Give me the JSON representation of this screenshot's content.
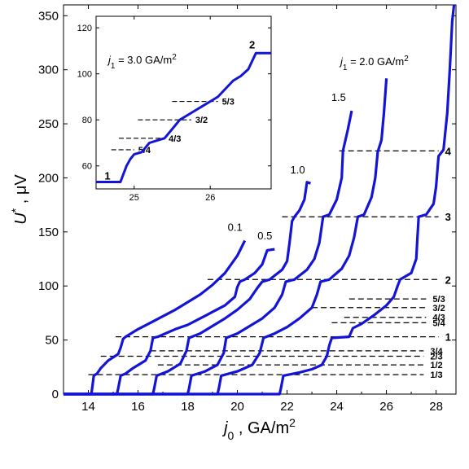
{
  "chart_data": {
    "type": "line",
    "xlabel": "j_0 , GA/m^2",
    "ylabel": "U^* , μV",
    "xlim": [
      13,
      28.8
    ],
    "ylim": [
      0,
      360
    ],
    "xticks": [
      "14",
      "16",
      "18",
      "20",
      "22",
      "24",
      "26",
      "28"
    ],
    "yticks": [
      "0",
      "50",
      "100",
      "150",
      "200",
      "250",
      "300",
      "350"
    ],
    "colors": {
      "curve": "#1414d6",
      "ref_line": "#000000"
    },
    "annotation": "j_1 = 2.0 GA/m^2",
    "series": [
      {
        "name": "0.1",
        "points": [
          [
            13.0,
            0
          ],
          [
            14.12,
            0
          ],
          [
            14.15,
            5
          ],
          [
            14.22,
            17
          ],
          [
            14.35,
            19
          ],
          [
            14.5,
            24
          ],
          [
            14.8,
            31
          ],
          [
            15.2,
            37
          ],
          [
            15.3,
            43
          ],
          [
            15.4,
            51
          ],
          [
            15.5,
            53
          ],
          [
            16.0,
            60
          ],
          [
            16.5,
            66
          ],
          [
            17.0,
            72
          ],
          [
            17.5,
            78
          ],
          [
            18.0,
            85
          ],
          [
            18.5,
            92
          ],
          [
            19.0,
            101
          ],
          [
            19.5,
            112
          ],
          [
            20.0,
            128
          ],
          [
            20.3,
            142
          ]
        ]
      },
      {
        "name": "0.5",
        "points": [
          [
            13.0,
            0
          ],
          [
            15.15,
            0
          ],
          [
            15.2,
            5
          ],
          [
            15.3,
            17
          ],
          [
            15.5,
            19
          ],
          [
            15.8,
            24
          ],
          [
            16.3,
            31
          ],
          [
            16.5,
            40
          ],
          [
            16.6,
            52
          ],
          [
            16.8,
            53
          ],
          [
            17.5,
            60
          ],
          [
            18.0,
            64
          ],
          [
            18.5,
            70
          ],
          [
            19.0,
            76
          ],
          [
            19.5,
            82
          ],
          [
            19.9,
            90
          ],
          [
            20.0,
            99
          ],
          [
            20.1,
            104
          ],
          [
            20.3,
            106
          ],
          [
            20.7,
            112
          ],
          [
            21.0,
            120
          ],
          [
            21.2,
            133
          ],
          [
            21.5,
            134
          ]
        ]
      },
      {
        "name": "1.0",
        "points": [
          [
            13.0,
            0
          ],
          [
            16.6,
            0
          ],
          [
            16.65,
            5
          ],
          [
            16.75,
            17
          ],
          [
            17.2,
            21
          ],
          [
            17.7,
            28
          ],
          [
            17.95,
            40
          ],
          [
            18.05,
            52
          ],
          [
            18.5,
            56
          ],
          [
            19.0,
            63
          ],
          [
            19.5,
            70
          ],
          [
            20.0,
            78
          ],
          [
            20.5,
            88
          ],
          [
            20.8,
            98
          ],
          [
            21.0,
            104
          ],
          [
            21.3,
            106
          ],
          [
            21.8,
            115
          ],
          [
            22.0,
            123
          ],
          [
            22.1,
            140
          ],
          [
            22.2,
            160
          ],
          [
            22.3,
            164
          ],
          [
            22.5,
            170
          ],
          [
            22.7,
            180
          ],
          [
            22.8,
            196
          ],
          [
            22.95,
            195
          ]
        ]
      },
      {
        "name": "1.5",
        "points": [
          [
            13.0,
            0
          ],
          [
            18.0,
            0
          ],
          [
            18.05,
            5
          ],
          [
            18.15,
            17
          ],
          [
            18.7,
            21
          ],
          [
            19.2,
            27
          ],
          [
            19.45,
            38
          ],
          [
            19.55,
            52
          ],
          [
            20.0,
            56
          ],
          [
            20.5,
            63
          ],
          [
            21.0,
            70
          ],
          [
            21.5,
            80
          ],
          [
            21.8,
            92
          ],
          [
            21.95,
            104
          ],
          [
            22.3,
            106
          ],
          [
            22.8,
            115
          ],
          [
            23.1,
            125
          ],
          [
            23.3,
            140
          ],
          [
            23.45,
            164
          ],
          [
            23.7,
            166
          ],
          [
            24.0,
            180
          ],
          [
            24.2,
            200
          ],
          [
            24.25,
            225
          ],
          [
            24.45,
            245
          ],
          [
            24.6,
            262
          ]
        ]
      },
      {
        "name": "2.0",
        "points": [
          [
            13.0,
            0
          ],
          [
            19.2,
            0
          ],
          [
            19.25,
            5
          ],
          [
            19.35,
            17
          ],
          [
            20.0,
            21
          ],
          [
            20.6,
            27
          ],
          [
            20.9,
            38
          ],
          [
            21.05,
            52
          ],
          [
            21.5,
            56
          ],
          [
            22.0,
            62
          ],
          [
            22.5,
            70
          ],
          [
            23.0,
            80
          ],
          [
            23.2,
            92
          ],
          [
            23.35,
            104
          ],
          [
            23.7,
            106
          ],
          [
            24.2,
            116
          ],
          [
            24.5,
            128
          ],
          [
            24.7,
            145
          ],
          [
            24.85,
            164
          ],
          [
            25.1,
            166
          ],
          [
            25.4,
            182
          ],
          [
            25.55,
            200
          ],
          [
            25.65,
            224
          ],
          [
            25.8,
            235
          ],
          [
            25.9,
            260
          ],
          [
            26.0,
            292
          ]
        ]
      },
      {
        "name": "3.0",
        "points": [
          [
            13.0,
            0
          ],
          [
            21.7,
            0
          ],
          [
            21.75,
            5
          ],
          [
            21.85,
            17
          ],
          [
            22.5,
            20
          ],
          [
            23.0,
            23
          ],
          [
            23.4,
            27
          ],
          [
            23.6,
            35
          ],
          [
            23.7,
            45
          ],
          [
            23.8,
            52
          ],
          [
            24.5,
            53
          ],
          [
            24.65,
            61
          ],
          [
            25.0,
            65
          ],
          [
            25.5,
            73
          ],
          [
            26.0,
            82
          ],
          [
            26.3,
            90
          ],
          [
            26.45,
            100
          ],
          [
            26.55,
            106
          ],
          [
            27.0,
            112
          ],
          [
            27.2,
            125
          ],
          [
            27.25,
            145
          ],
          [
            27.3,
            164
          ],
          [
            27.6,
            166
          ],
          [
            27.9,
            176
          ],
          [
            28.0,
            192
          ],
          [
            28.1,
            220
          ],
          [
            28.3,
            226
          ],
          [
            28.45,
            260
          ],
          [
            28.55,
            300
          ],
          [
            28.65,
            345
          ],
          [
            28.72,
            360
          ]
        ]
      }
    ],
    "ref_lines": [
      {
        "label": "4",
        "y": 225,
        "x0": 24.1,
        "x1": 28.1,
        "bold": true
      },
      {
        "label": "3",
        "y": 164,
        "x0": 21.8,
        "x1": 28.1,
        "bold": true
      },
      {
        "label": "2",
        "y": 106,
        "x0": 18.8,
        "x1": 28.1,
        "bold": true
      },
      {
        "label": "5/3",
        "y": 88,
        "x0": 24.5,
        "x1": 27.6,
        "bold": false
      },
      {
        "label": "3/2",
        "y": 80,
        "x0": 23.0,
        "x1": 27.6,
        "bold": false
      },
      {
        "label": "4/3",
        "y": 71,
        "x0": 24.3,
        "x1": 27.6,
        "bold": false
      },
      {
        "label": "5/4",
        "y": 66,
        "x0": 23.8,
        "x1": 27.6,
        "bold": false
      },
      {
        "label": "1",
        "y": 53,
        "x0": 15.1,
        "x1": 28.1,
        "bold": true
      },
      {
        "label": "3/4",
        "y": 40,
        "x0": 16.5,
        "x1": 27.5,
        "bold": false
      },
      {
        "label": "2/3",
        "y": 35,
        "x0": 14.5,
        "x1": 27.5,
        "bold": false
      },
      {
        "label": "1/2",
        "y": 27,
        "x0": 16.8,
        "x1": 27.5,
        "bold": false
      },
      {
        "label": "1/3",
        "y": 18,
        "x0": 14.0,
        "x1": 27.5,
        "bold": false
      }
    ],
    "inset": {
      "xlim": [
        24.5,
        26.8
      ],
      "ylim": [
        50,
        125
      ],
      "xticks": [
        "25",
        "26"
      ],
      "yticks": [
        "60",
        "80",
        "100",
        "120"
      ],
      "annotation": "j_1 = 3.0 GA/m^2",
      "points": [
        [
          24.5,
          53
        ],
        [
          24.82,
          53
        ],
        [
          24.9,
          60
        ],
        [
          24.95,
          63
        ],
        [
          25.0,
          65
        ],
        [
          25.1,
          66
        ],
        [
          25.2,
          70
        ],
        [
          25.3,
          71
        ],
        [
          25.4,
          72
        ],
        [
          25.5,
          76
        ],
        [
          25.6,
          80
        ],
        [
          25.7,
          82
        ],
        [
          25.8,
          84
        ],
        [
          25.9,
          86
        ],
        [
          26.0,
          88
        ],
        [
          26.1,
          90
        ],
        [
          26.3,
          97
        ],
        [
          26.4,
          99
        ],
        [
          26.5,
          102
        ],
        [
          26.6,
          109
        ],
        [
          26.8,
          109
        ]
      ],
      "ref_lines": [
        {
          "label": "5/3",
          "y": 88,
          "x0": 25.5,
          "x1": 26.1
        },
        {
          "label": "3/2",
          "y": 80,
          "x0": 25.05,
          "x1": 25.75
        },
        {
          "label": "4/3",
          "y": 72,
          "x0": 24.8,
          "x1": 25.4
        },
        {
          "label": "5/4",
          "y": 67,
          "x0": 24.7,
          "x1": 25.0
        }
      ],
      "end_labels": [
        {
          "label": "1",
          "x": 24.65,
          "y": 54
        },
        {
          "label": "2",
          "x": 26.55,
          "y": 111
        }
      ]
    }
  }
}
